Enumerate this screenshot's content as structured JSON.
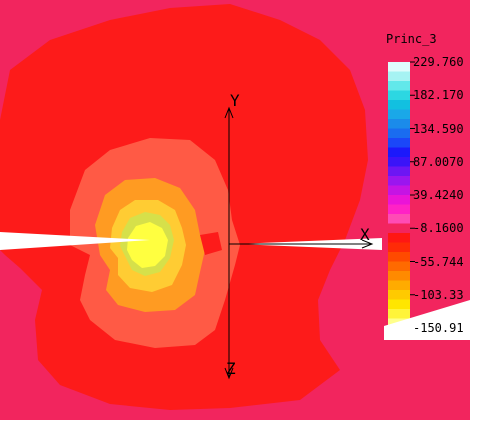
{
  "viewer": {
    "background": "#ffffff",
    "field_background": "#f2255e"
  },
  "axes": {
    "x_label": "X",
    "y_label": "Y",
    "z_label": "Z"
  },
  "colorbar": {
    "title": "Princ_3",
    "tick_labels": [
      "229.760",
      "182.170",
      "134.590",
      "87.0070",
      "39.4240",
      "-8.1600",
      "-55.744",
      "-103.33",
      "-150.91"
    ],
    "bands": [
      "#dffcfc",
      "#a6f3f3",
      "#62e8ea",
      "#2cd7e2",
      "#12c0e0",
      "#1aa8e8",
      "#1b8bea",
      "#1a6cf0",
      "#1b47f8",
      "#1b19fb",
      "#3b14f8",
      "#6c16f4",
      "#9a16ef",
      "#c514e4",
      "#ea14d8",
      "#ff22c6",
      "#ff4bb5",
      "#f2255e",
      "#ff1713",
      "#ff2b07",
      "#ff4a00",
      "#ff6a00",
      "#ff8a00",
      "#ffab00",
      "#ffca00",
      "#ffe600",
      "#fff43a",
      "#ffff8c"
    ]
  },
  "contours": {
    "c1": "#fd1b1a",
    "c2": "#ff5a45",
    "c3": "#ff9b22",
    "c4": "#ffcc33",
    "c5": "#d6e04a",
    "c6": "#ffff40"
  }
}
